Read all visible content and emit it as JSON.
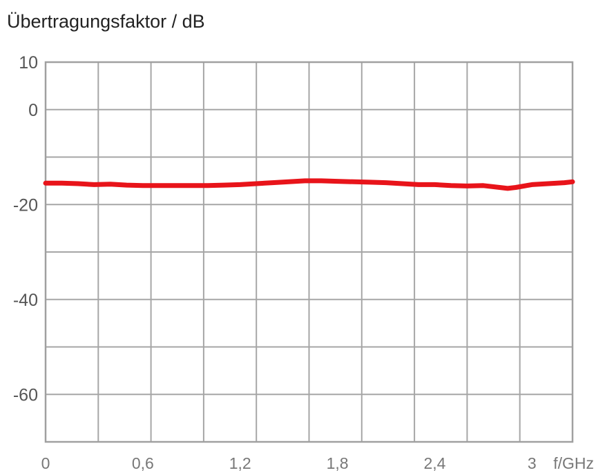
{
  "chart_data": {
    "type": "line",
    "title": "Übertragungsfaktor / dB",
    "xlabel": "f/GHz",
    "ylabel": "",
    "xlim": [
      0,
      3.25
    ],
    "ylim": [
      -70,
      10
    ],
    "x_ticks": [
      {
        "value": 0,
        "label": "0"
      },
      {
        "value": 0.6,
        "label": "0,6"
      },
      {
        "value": 1.2,
        "label": "1,2"
      },
      {
        "value": 1.8,
        "label": "1,8"
      },
      {
        "value": 2.4,
        "label": "2,4"
      },
      {
        "value": 3.0,
        "label": "3"
      }
    ],
    "y_ticks": [
      {
        "value": 10,
        "label": "10"
      },
      {
        "value": 0,
        "label": "0"
      },
      {
        "value": -20,
        "label": "-20"
      },
      {
        "value": -40,
        "label": "-40"
      },
      {
        "value": -60,
        "label": "-60"
      }
    ],
    "grid": true,
    "x_grid_step": 0.325,
    "y_grid_step": 10,
    "series": [
      {
        "color": "#e8141a",
        "x": [
          0.0,
          0.1,
          0.2,
          0.3,
          0.4,
          0.5,
          0.6,
          0.7,
          0.8,
          0.9,
          1.0,
          1.1,
          1.2,
          1.3,
          1.4,
          1.5,
          1.6,
          1.7,
          1.8,
          1.9,
          2.0,
          2.1,
          2.2,
          2.3,
          2.4,
          2.5,
          2.6,
          2.7,
          2.8,
          2.85,
          2.9,
          3.0,
          3.1,
          3.2,
          3.25
        ],
        "y": [
          -15.5,
          -15.5,
          -15.6,
          -15.8,
          -15.7,
          -15.9,
          -16.0,
          -16.0,
          -16.0,
          -16.0,
          -16.0,
          -15.9,
          -15.8,
          -15.6,
          -15.4,
          -15.2,
          -15.0,
          -15.0,
          -15.1,
          -15.2,
          -15.3,
          -15.4,
          -15.6,
          -15.8,
          -15.8,
          -16.0,
          -16.1,
          -16.0,
          -16.4,
          -16.6,
          -16.4,
          -15.8,
          -15.6,
          -15.4,
          -15.2
        ]
      }
    ]
  }
}
